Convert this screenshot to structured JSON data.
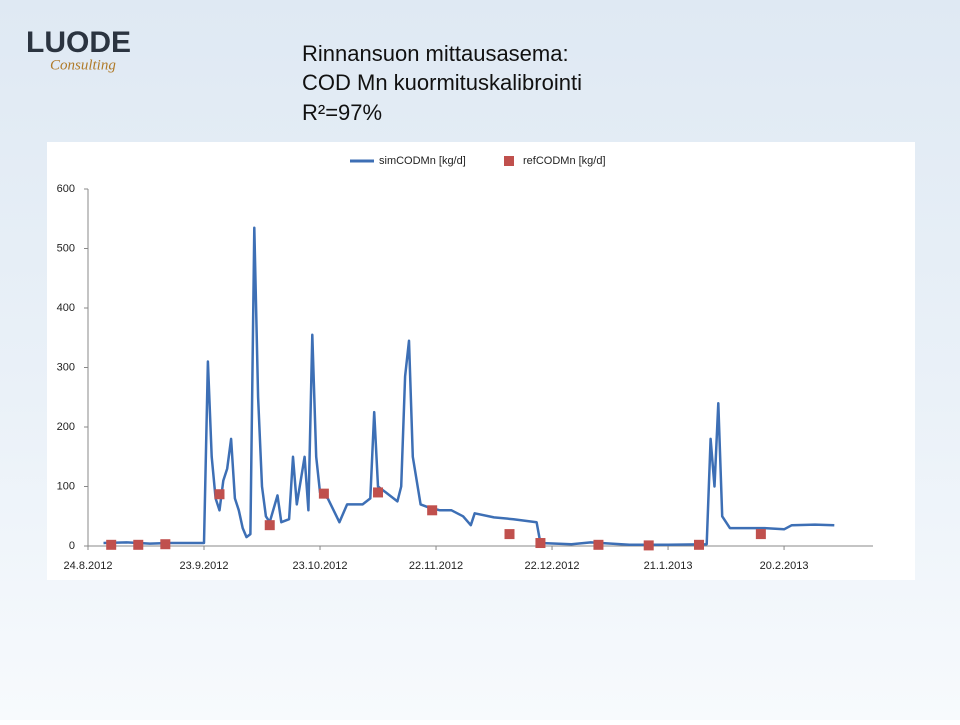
{
  "logo": {
    "name": "LUODE",
    "tagline": "Consulting"
  },
  "chart_data": {
    "type": "line",
    "title": [
      "Rinnansuon mittausasema:",
      "COD Mn kuormituskalibrointi"
    ],
    "subtitle": "R²=97%",
    "xlim": [
      "24.8.2012",
      "15.3.2013"
    ],
    "xticks": [
      "24.8.2012",
      "23.9.2012",
      "23.10.2012",
      "22.11.2012",
      "22.12.2012",
      "21.1.2013",
      "20.2.2013"
    ],
    "ylim": [
      0,
      600
    ],
    "yticks": [
      0,
      100,
      200,
      300,
      400,
      500,
      600
    ],
    "grid": false,
    "legend": "top",
    "series": [
      {
        "name": "simCODMn [kg/d]",
        "type": "line",
        "color": "#3d6fb5",
        "x": [
          "28.8.2012",
          "3.9.2012",
          "9.9.2012",
          "14.9.2012",
          "23.9.2012",
          "24.9.2012",
          "25.9.2012",
          "26.9.2012",
          "27.9.2012",
          "28.9.2012",
          "29.9.2012",
          "30.9.2012",
          "1.10.2012",
          "2.10.2012",
          "3.10.2012",
          "4.10.2012",
          "5.10.2012",
          "6.10.2012",
          "7.10.2012",
          "8.10.2012",
          "9.10.2012",
          "10.10.2012",
          "12.10.2012",
          "13.10.2012",
          "15.10.2012",
          "16.10.2012",
          "17.10.2012",
          "19.10.2012",
          "20.10.2012",
          "21.10.2012",
          "22.10.2012",
          "23.10.2012",
          "25.10.2012",
          "28.10.2012",
          "30.10.2012",
          "3.11.2012",
          "5.11.2012",
          "6.11.2012",
          "7.11.2012",
          "9.11.2012",
          "12.11.2012",
          "13.11.2012",
          "14.11.2012",
          "15.11.2012",
          "16.11.2012",
          "18.11.2012",
          "20.11.2012",
          "23.11.2012",
          "26.11.2012",
          "29.11.2012",
          "1.12.2012",
          "2.12.2012",
          "7.12.2012",
          "12.12.2012",
          "18.12.2012",
          "19.12.2012",
          "27.12.2012",
          "1.1.2013",
          "11.1.2013",
          "21.1.2013",
          "31.1.2013",
          "1.2.2013",
          "2.2.2013",
          "3.2.2013",
          "4.2.2013",
          "6.2.2013",
          "15.2.2013",
          "20.2.2013",
          "22.2.2013",
          "28.2.2013",
          "5.3.2013"
        ],
        "values": [
          5,
          6,
          4,
          5,
          5,
          310,
          150,
          80,
          60,
          110,
          130,
          180,
          80,
          60,
          30,
          15,
          20,
          535,
          250,
          100,
          50,
          40,
          85,
          40,
          45,
          150,
          70,
          150,
          60,
          355,
          150,
          90,
          80,
          40,
          70,
          70,
          80,
          225,
          100,
          90,
          75,
          100,
          285,
          345,
          150,
          70,
          65,
          60,
          60,
          50,
          35,
          55,
          48,
          45,
          40,
          5,
          3,
          6,
          2,
          2,
          3,
          180,
          100,
          240,
          50,
          30,
          30,
          28,
          35,
          36,
          35
        ]
      },
      {
        "name": "refCODMn [kg/d]",
        "type": "scatter",
        "color": "#c0504d",
        "x": [
          "30.8.2012",
          "6.9.2012",
          "13.9.2012",
          "27.9.2012",
          "10.10.2012",
          "24.10.2012",
          "7.11.2012",
          "21.11.2012",
          "11.12.2012",
          "19.12.2012",
          "3.1.2013",
          "16.1.2013",
          "29.1.2013",
          "14.2.2013"
        ],
        "values": [
          2,
          2,
          3,
          87,
          35,
          88,
          90,
          60,
          20,
          5,
          2,
          1,
          2,
          20
        ]
      }
    ]
  }
}
